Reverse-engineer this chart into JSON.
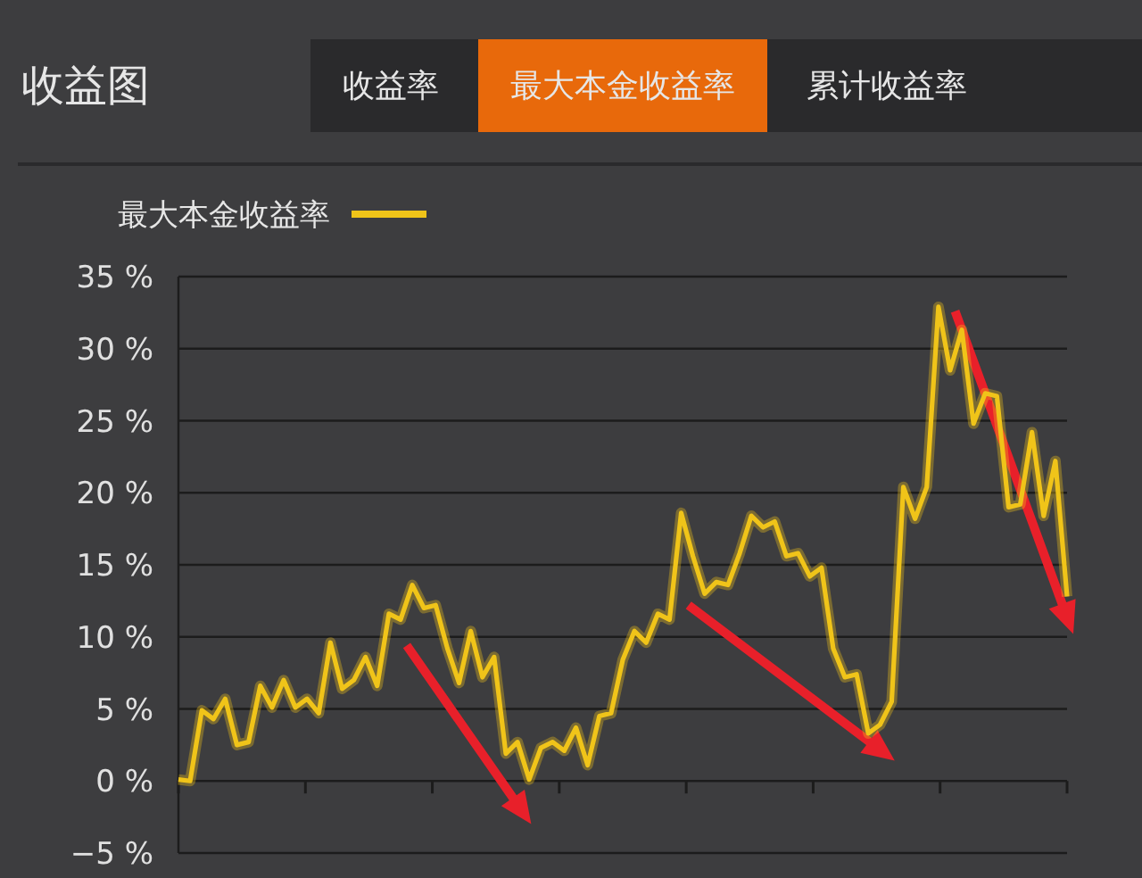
{
  "chart_data": {
    "type": "line",
    "title": "收益图",
    "annotations": [
      "收益率",
      "最大本金收益率",
      "累计收益率"
    ],
    "series": [
      {
        "name": "最大本金收益率",
        "color": "#f0c419",
        "values": [
          0.1,
          0,
          4.9,
          4.3,
          5.7,
          2.5,
          2.7,
          6.6,
          5.1,
          7.0,
          5.1,
          5.7,
          4.7,
          9.6,
          6.4,
          7.0,
          8.6,
          6.6,
          11.6,
          11.2,
          13.6,
          12.0,
          12.2,
          9.2,
          6.8,
          10.4,
          7.2,
          8.6,
          1.9,
          2.7,
          0.1,
          2.3,
          2.7,
          2.1,
          3.7,
          1.1,
          4.5,
          4.7,
          8.4,
          10.4,
          9.6,
          11.6,
          11.2,
          18.6,
          15.6,
          13.0,
          13.8,
          13.6,
          15.8,
          18.4,
          17.6,
          18.0,
          15.6,
          15.8,
          14.2,
          14.8,
          9.2,
          7.2,
          7.4,
          3.3,
          3.9,
          5.5,
          20.4,
          18.2,
          20.4,
          32.9,
          28.5,
          31.3,
          24.8,
          26.9,
          26.7,
          19.0,
          19.2,
          24.2,
          18.4,
          22.2,
          12.8
        ]
      }
    ],
    "categories": [
      null,
      null,
      null,
      null,
      null,
      null,
      null,
      null,
      null,
      null,
      null,
      null,
      null,
      null,
      null,
      null,
      null,
      null,
      null,
      null,
      null,
      null,
      null,
      null,
      null,
      null,
      null,
      null,
      null,
      null,
      null,
      null,
      null,
      null,
      null,
      null,
      null,
      null,
      null,
      null,
      null,
      null,
      null,
      null,
      null,
      null,
      null,
      null,
      null,
      null,
      null,
      null,
      null,
      null,
      null,
      null,
      null,
      null,
      null,
      null,
      null,
      null,
      null,
      null,
      null,
      null,
      null,
      null,
      null,
      null,
      null,
      null,
      null,
      null,
      null,
      null,
      null
    ],
    "ylim": [
      -5,
      35
    ],
    "yticks": [
      {
        "value": -5,
        "label": "−5 %"
      },
      {
        "value": 0,
        "label": "0 %"
      },
      {
        "value": 5,
        "label": "5 %"
      },
      {
        "value": 10,
        "label": "10 %"
      },
      {
        "value": 15,
        "label": "15 %"
      },
      {
        "value": 20,
        "label": "20 %"
      },
      {
        "value": 25,
        "label": "25 %"
      },
      {
        "value": 30,
        "label": "30 %"
      },
      {
        "value": 35,
        "label": "35 %"
      }
    ],
    "grid": "y",
    "legend": "top left"
  }
}
